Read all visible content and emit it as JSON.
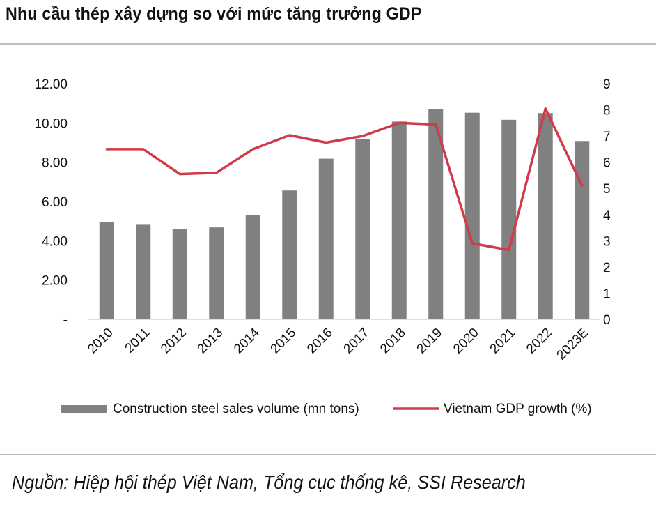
{
  "title": "Nhu cầu thép xây dựng  so với mức tăng trưởng  GDP",
  "source": "Nguồn: Hiệp hội thép Việt Nam, Tổng cục thống kê, SSI Research",
  "colors": {
    "bar": "#808080",
    "line": "#d13a47"
  },
  "chart_data": {
    "type": "bar",
    "categories": [
      "2010",
      "2011",
      "2012",
      "2013",
      "2014",
      "2015",
      "2016",
      "2017",
      "2018",
      "2019",
      "2020",
      "2021",
      "2022",
      "2023E"
    ],
    "series": [
      {
        "name": "Construction steel sales volume (mn tons)",
        "type": "bar",
        "axis": "left",
        "values": [
          4.95,
          4.85,
          4.58,
          4.68,
          5.3,
          6.56,
          8.18,
          9.17,
          10.07,
          10.7,
          10.52,
          10.16,
          10.5,
          9.08
        ]
      },
      {
        "name": "Vietnam GDP growth (%)",
        "type": "line",
        "axis": "right",
        "values": [
          6.5,
          6.5,
          5.55,
          5.6,
          6.5,
          7.03,
          6.75,
          7.0,
          7.5,
          7.44,
          2.9,
          2.65,
          8.05,
          5.1
        ]
      }
    ],
    "y_left": {
      "ylim": [
        0,
        12
      ],
      "ticks": [
        "-",
        "2.00",
        "4.00",
        "6.00",
        "8.00",
        "10.00",
        "12.00"
      ]
    },
    "y_right": {
      "ylim": [
        0,
        9
      ],
      "ticks": [
        "0",
        "1",
        "2",
        "3",
        "4",
        "5",
        "6",
        "7",
        "8",
        "9"
      ]
    },
    "grid": false,
    "legend": "bottom"
  }
}
